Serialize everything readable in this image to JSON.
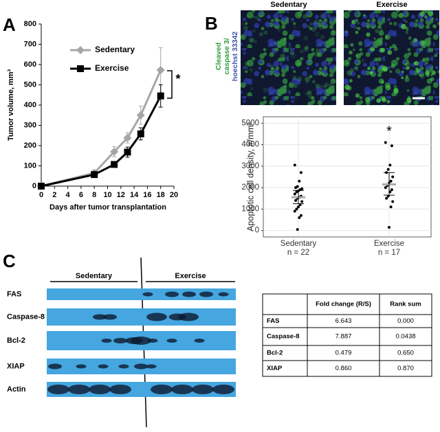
{
  "panels": {
    "a": "A",
    "b": "B",
    "c": "C"
  },
  "chart_data": [
    {
      "type": "line",
      "x_label": "Days after tumor transplantation",
      "y_label": "Tumor volume, mm³",
      "x": [
        0,
        8,
        11,
        13,
        15,
        18
      ],
      "series": [
        {
          "name": "Sedentary",
          "color": "#a6a6a6",
          "marker": "diamond",
          "values": [
            0,
            65,
            170,
            238,
            350,
            573
          ],
          "errors": [
            0,
            15,
            25,
            25,
            45,
            110
          ]
        },
        {
          "name": "Exercise",
          "color": "#000000",
          "marker": "square",
          "values": [
            0,
            57,
            107,
            168,
            258,
            445
          ],
          "errors": [
            0,
            10,
            10,
            25,
            30,
            55
          ]
        }
      ],
      "xlim": [
        0,
        20
      ],
      "xticks": [
        0,
        2,
        4,
        6,
        8,
        10,
        12,
        14,
        16,
        18,
        20
      ],
      "ylim": [
        0,
        800
      ],
      "yticks": [
        0,
        100,
        200,
        300,
        400,
        500,
        600,
        700,
        800
      ],
      "annotation": "*"
    },
    {
      "type": "strip",
      "y_label": "Apoptotic cell density, #/mm²",
      "categories": [
        "Sedentary",
        "Exercise"
      ],
      "sublabels": [
        "n = 22",
        "n = 17"
      ],
      "points": [
        [
          3050,
          2700,
          2300,
          2050,
          2000,
          1950,
          1900,
          1850,
          1800,
          1700,
          1600,
          1550,
          1500,
          1400,
          1350,
          1200,
          1100,
          1000,
          900,
          700,
          600,
          50
        ],
        [
          4100,
          3950,
          3050,
          2850,
          2700,
          2500,
          2300,
          2200,
          2100,
          2000,
          1900,
          1800,
          1600,
          1500,
          1350,
          1100,
          150
        ]
      ],
      "means": [
        1550,
        2150
      ],
      "ci": [
        [
          1250,
          1870
        ],
        [
          1650,
          2700
        ]
      ],
      "ylim": [
        -300,
        5300
      ],
      "yticks": [
        0,
        1000,
        2000,
        3000,
        4000,
        5000
      ],
      "grid": true,
      "annotation": "*"
    }
  ],
  "images": {
    "columns": [
      "Sedentary",
      "Exercise"
    ],
    "stain": [
      "Cleaved",
      "caspase 3/",
      "hoechst 33342"
    ]
  },
  "blot": {
    "groups": [
      "Sedentary",
      "Exercise"
    ],
    "bands": [
      "FAS",
      "Caspase-8",
      "Bcl-2",
      "XIAP",
      "Actin"
    ]
  },
  "table": {
    "header": [
      "Fold change (R/S)",
      "Rank sum"
    ],
    "rows": [
      [
        "FAS",
        "6.643",
        "0.000"
      ],
      [
        "Caspase-8",
        "7.887",
        "0.0438"
      ],
      [
        "Bcl-2",
        "0.479",
        "0.650"
      ],
      [
        "XIAP",
        "0.860",
        "0.870"
      ]
    ]
  }
}
